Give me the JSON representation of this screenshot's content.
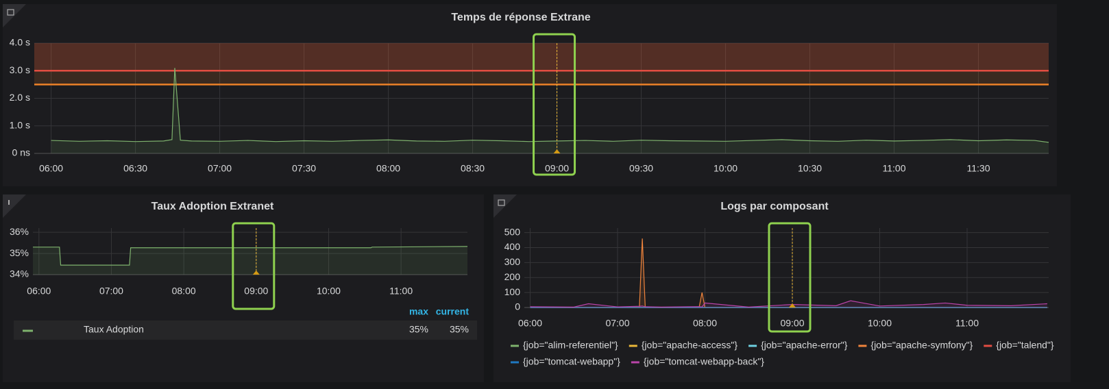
{
  "chart_data": [
    {
      "type": "line",
      "title": "Temps de réponse Extrane",
      "xlim": [
        "05:54",
        "11:55"
      ],
      "xticks": [
        "06:00",
        "06:30",
        "07:00",
        "07:30",
        "08:00",
        "08:30",
        "09:00",
        "09:30",
        "10:00",
        "10:30",
        "11:00",
        "11:30"
      ],
      "ylim": [
        0,
        4
      ],
      "yticks": [
        {
          "value": 0,
          "label": "0 ns"
        },
        {
          "value": 1,
          "label": "1.0 s"
        },
        {
          "value": 2,
          "label": "2.0 s"
        },
        {
          "value": 3,
          "label": "3.0 s"
        },
        {
          "value": 4,
          "label": "4.0 s"
        }
      ],
      "grid": true,
      "thresholds": [
        {
          "value": 2.5,
          "color": "#ed8128"
        },
        {
          "value": 3,
          "color": "#e24d42"
        }
      ],
      "annotations": [
        "09:00"
      ],
      "series": [
        {
          "color": "#7eb26d",
          "x": [
            "06:00",
            "06:10",
            "06:20",
            "06:30",
            "06:40",
            "06:43",
            "06:44",
            "06:46",
            "06:50",
            "07:00",
            "07:10",
            "07:20",
            "07:30",
            "07:40",
            "07:50",
            "08:00",
            "08:10",
            "08:20",
            "08:30",
            "08:40",
            "08:50",
            "09:00",
            "09:10",
            "09:20",
            "09:30",
            "09:40",
            "09:50",
            "10:00",
            "10:10",
            "10:20",
            "10:30",
            "10:40",
            "10:50",
            "11:00",
            "11:10",
            "11:20",
            "11:30",
            "11:40",
            "11:50",
            "11:55"
          ],
          "values": [
            0.47,
            0.44,
            0.46,
            0.43,
            0.45,
            0.5,
            3.1,
            0.48,
            0.45,
            0.44,
            0.47,
            0.43,
            0.46,
            0.44,
            0.47,
            0.49,
            0.45,
            0.44,
            0.48,
            0.46,
            0.43,
            0.45,
            0.47,
            0.44,
            0.48,
            0.46,
            0.45,
            0.44,
            0.47,
            0.5,
            0.46,
            0.44,
            0.48,
            0.45,
            0.47,
            0.5,
            0.46,
            0.49,
            0.47,
            0.4
          ]
        }
      ]
    },
    {
      "type": "line",
      "title": "Taux Adoption Extranet",
      "xlim": [
        "05:55",
        "11:55"
      ],
      "xticks": [
        "06:00",
        "07:00",
        "08:00",
        "09:00",
        "10:00",
        "11:00"
      ],
      "ylim": [
        34,
        36.2
      ],
      "yticks": [
        {
          "value": 34,
          "label": "34%"
        },
        {
          "value": 35,
          "label": "35%"
        },
        {
          "value": 36,
          "label": "36%"
        }
      ],
      "grid": true,
      "annotations": [
        "09:00"
      ],
      "legend_columns": [
        "max",
        "current"
      ],
      "series": [
        {
          "name": "Taux Adoption",
          "color": "#7eb26d",
          "x": [
            "05:55",
            "06:17",
            "06:18",
            "07:15",
            "07:16",
            "09:00",
            "10:35",
            "10:36",
            "11:55"
          ],
          "values": [
            35.3,
            35.3,
            34.45,
            34.45,
            35.27,
            35.27,
            35.27,
            35.3,
            35.33
          ],
          "stats": [
            35.33,
            35.33
          ],
          "stats_labels": [
            "35%",
            "35%"
          ]
        }
      ]
    },
    {
      "type": "line",
      "title": "Logs par composant",
      "xlim": [
        "05:56",
        "11:56"
      ],
      "xticks": [
        "06:00",
        "07:00",
        "08:00",
        "09:00",
        "10:00",
        "11:00"
      ],
      "ylim": [
        0,
        530
      ],
      "yticks": [
        0,
        100,
        200,
        300,
        400,
        500
      ],
      "grid": true,
      "annotations": [
        "09:00"
      ],
      "x": [
        "06:00",
        "06:30",
        "06:40",
        "07:00",
        "07:15",
        "07:17",
        "07:19",
        "07:30",
        "07:56",
        "07:58",
        "08:00",
        "08:30",
        "09:00",
        "09:30",
        "09:40",
        "10:00",
        "10:30",
        "10:45",
        "11:00",
        "11:30",
        "11:55"
      ],
      "series": [
        {
          "name": "{job=\"alim-referentiel\"}",
          "color": "#7eb26d",
          "values": [
            0,
            0,
            0,
            0,
            0,
            0,
            0,
            0,
            0,
            0,
            0,
            0,
            0,
            0,
            0,
            0,
            0,
            0,
            0,
            0,
            0
          ]
        },
        {
          "name": "{job=\"apache-access\"}",
          "color": "#eab839",
          "values": [
            0,
            0,
            0,
            0,
            0,
            0,
            0,
            0,
            0,
            0,
            0,
            0,
            0,
            0,
            0,
            0,
            0,
            0,
            0,
            0,
            0
          ]
        },
        {
          "name": "{job=\"apache-error\"}",
          "color": "#6ed0e0",
          "values": [
            0,
            0,
            0,
            0,
            0,
            0,
            0,
            0,
            0,
            0,
            0,
            0,
            0,
            0,
            0,
            0,
            0,
            0,
            0,
            0,
            0
          ]
        },
        {
          "name": "{job=\"apache-symfony\"}",
          "color": "#ef843c",
          "values": [
            0,
            0,
            0,
            0,
            0,
            460,
            0,
            0,
            0,
            100,
            0,
            0,
            0,
            0,
            0,
            0,
            0,
            0,
            0,
            0,
            0
          ]
        },
        {
          "name": "{job=\"talend\"}",
          "color": "#e24d42",
          "values": [
            0,
            0,
            0,
            0,
            0,
            0,
            0,
            0,
            0,
            0,
            0,
            0,
            0,
            0,
            0,
            0,
            0,
            0,
            0,
            0,
            0
          ]
        },
        {
          "name": "{job=\"tomcat-webapp\"}",
          "color": "#1f78c1",
          "values": [
            0,
            0,
            0,
            0,
            0,
            0,
            0,
            0,
            0,
            0,
            0,
            0,
            0,
            0,
            0,
            0,
            0,
            0,
            0,
            0,
            0
          ]
        },
        {
          "name": "{job=\"tomcat-webapp-back\"}",
          "color": "#ba43a9",
          "values": [
            5,
            3,
            25,
            4,
            8,
            10,
            5,
            3,
            6,
            4,
            30,
            3,
            20,
            12,
            45,
            10,
            20,
            30,
            15,
            12,
            25
          ]
        }
      ]
    }
  ]
}
